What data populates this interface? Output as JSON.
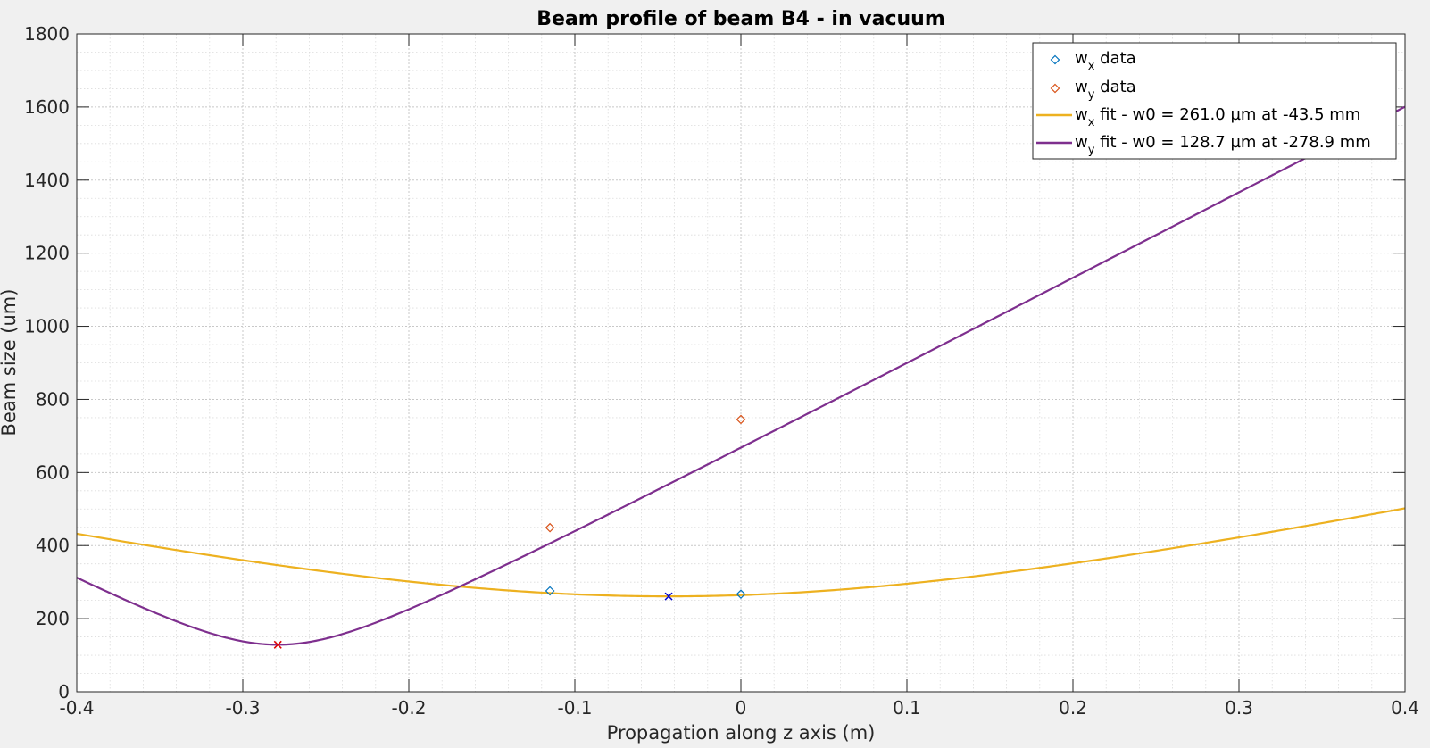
{
  "chart_data": {
    "type": "line",
    "title": "Beam profile of beam B4 - in vacuum",
    "xlabel": "Propagation along z axis (m)",
    "ylabel": "Beam size (um)",
    "xlim": [
      -0.4,
      0.4
    ],
    "ylim": [
      0,
      1800
    ],
    "xticks": [
      -0.4,
      -0.3,
      -0.2,
      -0.1,
      0,
      0.1,
      0.2,
      0.3,
      0.4
    ],
    "xtick_labels": [
      "-0.4",
      "-0.3",
      "-0.2",
      "-0.1",
      "0",
      "0.1",
      "0.2",
      "0.3",
      "0.4"
    ],
    "yticks": [
      0,
      200,
      400,
      600,
      800,
      1000,
      1200,
      1400,
      1600,
      1800
    ],
    "ytick_labels": [
      "0",
      "200",
      "400",
      "600",
      "800",
      "1000",
      "1200",
      "1400",
      "1600",
      "1800"
    ],
    "grid": true,
    "minor_grid": true,
    "legend_position": "top-right",
    "series": [
      {
        "kind": "scatter",
        "marker": "diamond",
        "color": "#0072BD",
        "legend": {
          "base": "w",
          "sub": "x",
          "rest": " data"
        },
        "x": [
          -0.115,
          0.0
        ],
        "y": [
          276,
          267
        ]
      },
      {
        "kind": "scatter",
        "marker": "diamond",
        "color": "#D95319",
        "legend": {
          "base": "w",
          "sub": "y",
          "rest": " data"
        },
        "x": [
          -0.115,
          0.0
        ],
        "y": [
          449,
          745
        ]
      },
      {
        "kind": "gaussian-fit",
        "color": "#EDB120",
        "legend": {
          "base": "w",
          "sub": "x",
          "rest": " fit - w0 = 261.0 µm at -43.5 mm"
        },
        "w0_um": 261.0,
        "z0_m": -0.0435,
        "far_field_slope_um_per_m": 967
      },
      {
        "kind": "gaussian-fit",
        "color": "#7E2F8E",
        "legend": {
          "base": "w",
          "sub": "y",
          "rest": " fit - w0 = 128.7 µm at -278.9 mm"
        },
        "w0_um": 128.7,
        "z0_m": -0.2789,
        "far_field_slope_um_per_m": 2350
      }
    ],
    "waist_markers": [
      {
        "x": -0.0435,
        "y": 261.0,
        "color": "#0000CC",
        "marker": "x"
      },
      {
        "x": -0.2789,
        "y": 128.7,
        "color": "#E00000",
        "marker": "x"
      }
    ]
  }
}
